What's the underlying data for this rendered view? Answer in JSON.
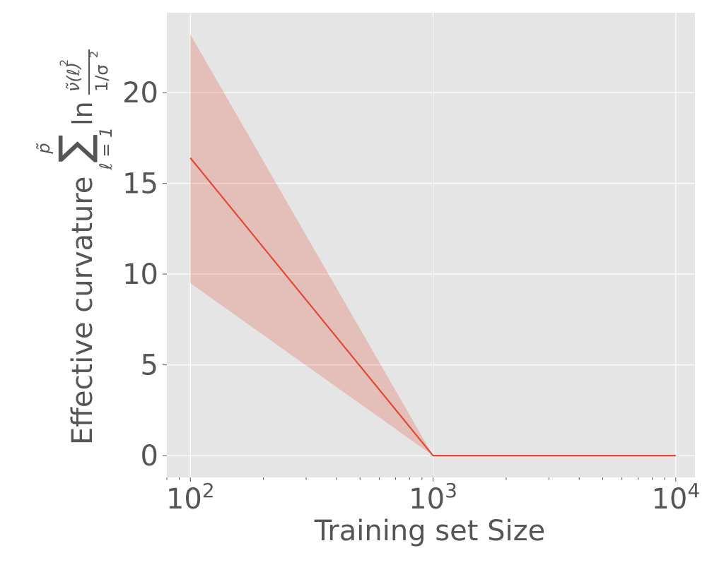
{
  "chart_data": {
    "type": "line",
    "xscale": "log",
    "xlabel": "Training set Size",
    "ylabel_prefix": "Effective curvature ",
    "ylabel_formula": {
      "sum_upper": "p̃",
      "sum_symbol": "∑",
      "sum_lower": "ℓ = 1",
      "ln": "ln",
      "numerator": "ν̃(ℓ)",
      "numerator_sup": "2",
      "denominator": "1/σ",
      "denominator_sup": "2"
    },
    "xlim": [
      80,
      12000
    ],
    "ylim": [
      -1.2,
      24.4
    ],
    "xticks": [
      {
        "value": 100,
        "base": "10",
        "exp": "2"
      },
      {
        "value": 1000,
        "base": "10",
        "exp": "3"
      },
      {
        "value": 10000,
        "base": "10",
        "exp": "4"
      }
    ],
    "yticks": [
      {
        "value": 0,
        "label": "0"
      },
      {
        "value": 5,
        "label": "5"
      },
      {
        "value": 10,
        "label": "10"
      },
      {
        "value": 15,
        "label": "15"
      },
      {
        "value": 20,
        "label": "20"
      }
    ],
    "grid": true,
    "series": [
      {
        "x": [
          100,
          1000,
          10000
        ],
        "y": [
          16.4,
          0.0,
          0.0
        ],
        "lower": [
          9.5,
          0.0,
          0.0
        ],
        "upper": [
          23.2,
          0.0,
          0.0
        ],
        "color": "#E24A33",
        "fill_color": "#E24A33",
        "fill_opacity": 0.25
      }
    ],
    "background": "#E5E5E5"
  }
}
